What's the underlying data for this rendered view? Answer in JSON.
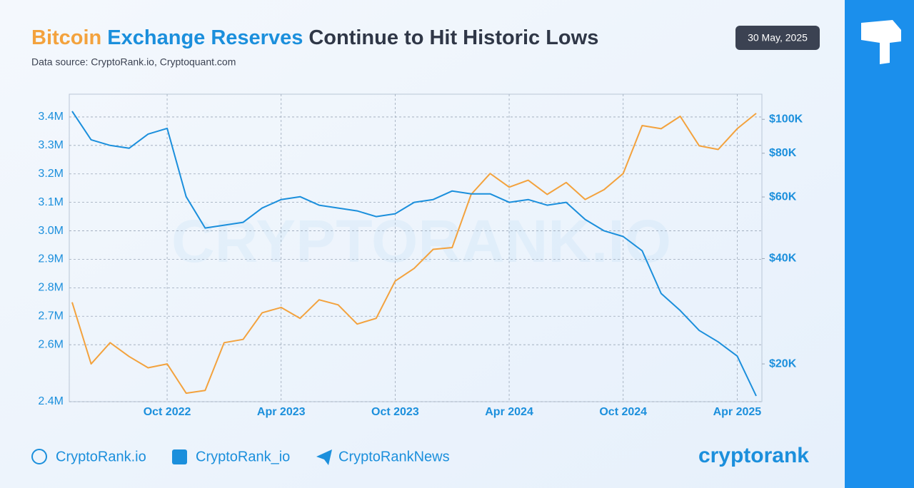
{
  "chart_data": {
    "type": "line",
    "title": "Continue to Hit Historic Lows",
    "subtitle": "Data source: CryptoRank.io, Cryptoquant.com",
    "date": "30 May, 2025",
    "watermark": "CRYPTORANK.IO",
    "x": [
      "2022-05",
      "2022-06",
      "2022-07",
      "2022-08",
      "2022-09",
      "2022-10",
      "2022-11",
      "2022-12",
      "2023-01",
      "2023-02",
      "2023-03",
      "2023-04",
      "2023-05",
      "2023-06",
      "2023-07",
      "2023-08",
      "2023-09",
      "2023-10",
      "2023-11",
      "2023-12",
      "2024-01",
      "2024-02",
      "2024-03",
      "2024-04",
      "2024-05",
      "2024-06",
      "2024-07",
      "2024-08",
      "2024-09",
      "2024-10",
      "2024-11",
      "2024-12",
      "2025-01",
      "2025-02",
      "2025-03",
      "2025-04",
      "2025-05"
    ],
    "xticks": [
      {
        "value": "2022-10",
        "label": "Oct 2022"
      },
      {
        "value": "2023-04",
        "label": "Apr 2023"
      },
      {
        "value": "2023-10",
        "label": "Oct 2023"
      },
      {
        "value": "2024-04",
        "label": "Apr 2024"
      },
      {
        "value": "2024-10",
        "label": "Oct 2024"
      },
      {
        "value": "2025-04",
        "label": "Apr 2025"
      }
    ],
    "series": [
      {
        "name": "Bitcoin",
        "color": "#f3a23d",
        "axis": "y2",
        "values": [
          30000,
          20000,
          23000,
          21000,
          19500,
          20000,
          16500,
          16800,
          23000,
          23500,
          28000,
          29000,
          27000,
          30500,
          29500,
          26000,
          27000,
          34500,
          37500,
          42500,
          43000,
          61000,
          70000,
          64000,
          67000,
          61000,
          66000,
          59000,
          63000,
          70000,
          96000,
          94000,
          102000,
          84000,
          82000,
          94000,
          104000
        ]
      },
      {
        "name": "Exchange Reserves",
        "color": "#1b8fdc",
        "values": [
          3420000,
          3320000,
          3300000,
          3290000,
          3340000,
          3360000,
          3120000,
          3010000,
          3020000,
          3030000,
          3080000,
          3110000,
          3120000,
          3090000,
          3080000,
          3070000,
          3050000,
          3060000,
          3100000,
          3110000,
          3140000,
          3130000,
          3130000,
          3100000,
          3110000,
          3090000,
          3100000,
          3040000,
          3000000,
          2980000,
          2930000,
          2780000,
          2720000,
          2650000,
          2610000,
          2560000,
          2420000
        ]
      }
    ],
    "ylim": [
      2400000,
      3480000
    ],
    "yticks": [
      {
        "value": 2400000,
        "label": "2.4M"
      },
      {
        "value": 2600000,
        "label": "2.6M"
      },
      {
        "value": 2700000,
        "label": "2.7M"
      },
      {
        "value": 2800000,
        "label": "2.8M"
      },
      {
        "value": 2900000,
        "label": "2.9M"
      },
      {
        "value": 3000000,
        "label": "3.0M"
      },
      {
        "value": 3100000,
        "label": "3.1M"
      },
      {
        "value": 3200000,
        "label": "3.2M"
      },
      {
        "value": 3300000,
        "label": "3.3M"
      },
      {
        "value": 3400000,
        "label": "3.4M"
      }
    ],
    "y2lim": [
      15600,
      118000
    ],
    "y2scale": "log",
    "y2ticks": [
      {
        "value": 20000,
        "label": "$20K"
      },
      {
        "value": 40000,
        "label": "$40K"
      },
      {
        "value": 60000,
        "label": "$60K"
      },
      {
        "value": 80000,
        "label": "$80K"
      },
      {
        "value": 100000,
        "label": "$100K"
      }
    ],
    "grid": true
  },
  "footer": {
    "links": [
      "CryptoRank.io",
      "CryptoRank_io",
      "CryptoRankNews"
    ],
    "logo": "cryptorank"
  }
}
